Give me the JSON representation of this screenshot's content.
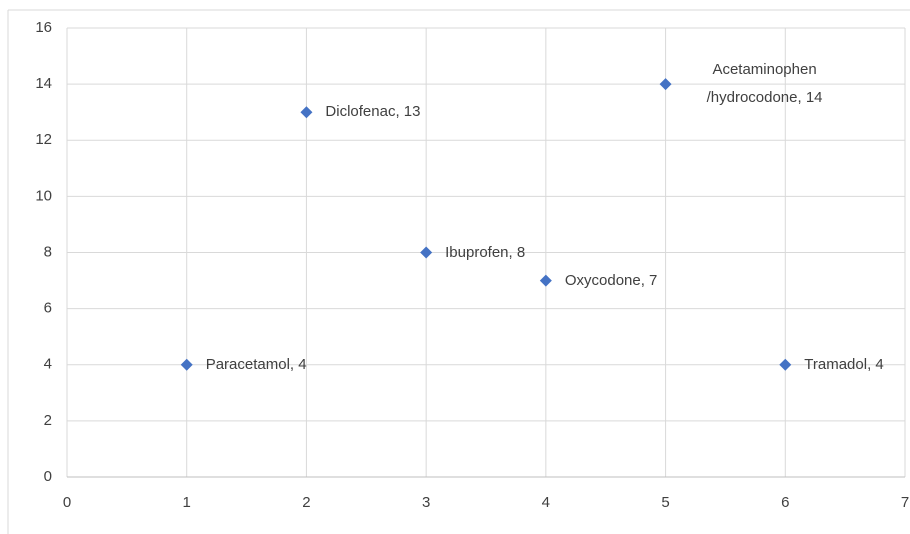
{
  "chart_data": {
    "type": "scatter",
    "x": [
      1,
      2,
      3,
      4,
      5,
      6
    ],
    "series": [
      {
        "color": "#4472c4",
        "values": [
          4,
          13,
          8,
          7,
          14,
          4
        ],
        "value_labels": [
          "Paracetamol, 4",
          "Diclofenac, 13",
          "Ibuprofen, 8",
          "Oxycodone, 7",
          "Acetaminophen /hydrocodone, 14",
          "Tramadol, 4"
        ]
      }
    ],
    "xlim": [
      0,
      7
    ],
    "xticks": [
      0,
      1,
      2,
      3,
      4,
      5,
      6,
      7
    ],
    "ylim": [
      0,
      16
    ],
    "yticks": [
      0,
      2,
      4,
      6,
      8,
      10,
      12,
      14,
      16
    ],
    "grid": true
  }
}
